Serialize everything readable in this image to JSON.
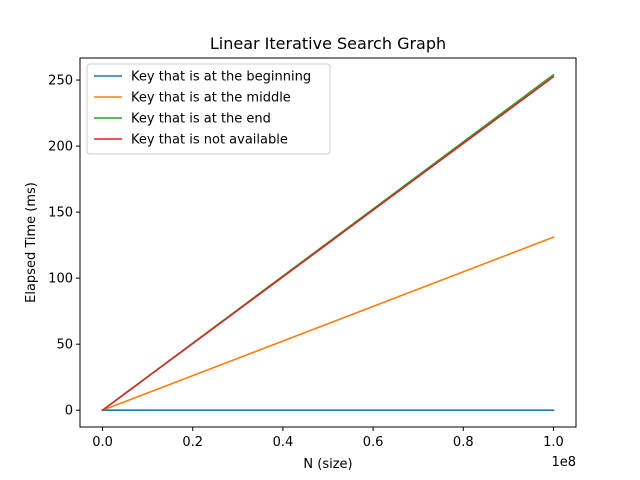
{
  "chart_data": {
    "type": "line",
    "title": "Linear Iterative Search Graph",
    "xlabel": "N (size)",
    "ylabel": "Elapsed Time (ms)",
    "x_offset_label": "1e8",
    "xlim": [
      -0.05,
      1.05
    ],
    "ylim": [
      -12.7,
      266.7
    ],
    "xticks": [
      0.0,
      0.2,
      0.4,
      0.6,
      0.8,
      1.0
    ],
    "xtick_labels": [
      "0.0",
      "0.2",
      "0.4",
      "0.6",
      "0.8",
      "1.0"
    ],
    "yticks": [
      0,
      50,
      100,
      150,
      200,
      250
    ],
    "ytick_labels": [
      "0",
      "50",
      "100",
      "150",
      "200",
      "250"
    ],
    "grid": false,
    "legend_position": "top-left",
    "x": [
      0.0,
      1.0
    ],
    "series": [
      {
        "name": "Key that is at the beginning",
        "color": "#1f77b4",
        "values": [
          0,
          0
        ]
      },
      {
        "name": "Key that is at the middle",
        "color": "#ff7f0e",
        "values": [
          0,
          131
        ]
      },
      {
        "name": "Key that is at the end",
        "color": "#2ca02c",
        "values": [
          0,
          254
        ]
      },
      {
        "name": "Key that is not available",
        "color": "#d62728",
        "values": [
          0,
          252.5
        ]
      }
    ]
  }
}
